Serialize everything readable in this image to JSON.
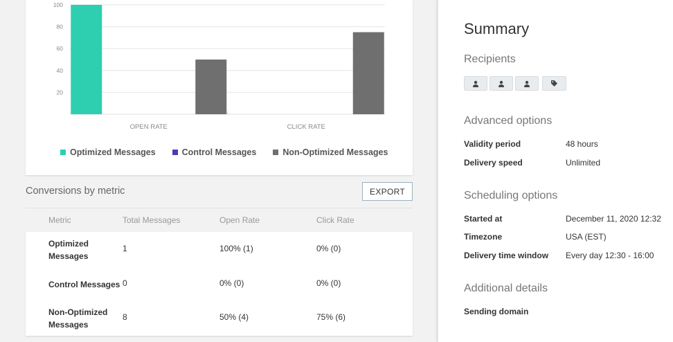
{
  "chart_data": {
    "type": "bar",
    "categories": [
      "OPEN RATE",
      "CLICK RATE"
    ],
    "series": [
      {
        "name": "Optimized Messages",
        "color": "#2ecfb1",
        "values": [
          100,
          0
        ]
      },
      {
        "name": "Control Messages",
        "color": "#4d3bb5",
        "values": [
          0,
          0
        ]
      },
      {
        "name": "Non-Optimized Messages",
        "color": "#6f6f6f",
        "values": [
          50,
          75
        ]
      }
    ],
    "yticks": [
      20,
      40,
      60,
      80,
      100
    ],
    "ylim": [
      0,
      100
    ],
    "grid": true,
    "legend_position": "bottom"
  },
  "conversions": {
    "title": "Conversions by metric",
    "export_label": "EXPORT",
    "columns": [
      "Metric",
      "Total Messages",
      "Open Rate",
      "Click Rate"
    ],
    "rows": [
      {
        "metric": "Optimized Messages",
        "total": "1",
        "open": "100% (1)",
        "click": "0% (0)"
      },
      {
        "metric": "Control Messages",
        "total": "0",
        "open": "0% (0)",
        "click": "0% (0)"
      },
      {
        "metric": "Non-Optimized Messages",
        "total": "8",
        "open": "50% (4)",
        "click": "75% (6)"
      }
    ]
  },
  "summary": {
    "title": "Summary",
    "recipients_title": "Recipients",
    "recipient_chips": [
      "person-icon",
      "person-icon",
      "person-icon",
      "tag-icon"
    ],
    "advanced_title": "Advanced options",
    "advanced": [
      {
        "key": "Validity period",
        "value": "48 hours"
      },
      {
        "key": "Delivery speed",
        "value": "Unlimited"
      }
    ],
    "scheduling_title": "Scheduling options",
    "scheduling": [
      {
        "key": "Started at",
        "value": "December 11, 2020 12:32"
      },
      {
        "key": "Timezone",
        "value": "USA (EST)"
      },
      {
        "key": "Delivery time window",
        "value": "Every day 12:30 - 16:00"
      }
    ],
    "additional_title": "Additional details",
    "additional": [
      {
        "key": "Sending domain",
        "value": ""
      }
    ]
  }
}
